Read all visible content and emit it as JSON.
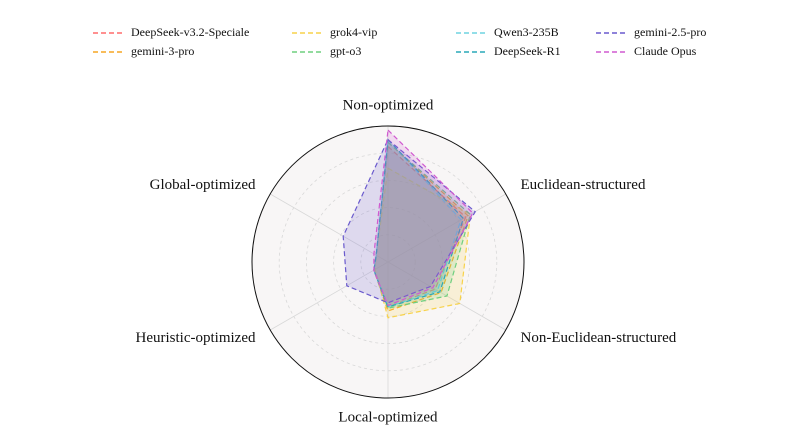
{
  "chart_data": {
    "type": "radar",
    "categories": [
      "Non-optimized",
      "Euclidean-structured",
      "Non-Euclidean-structured",
      "Local-optimized",
      "Heuristic-optimized",
      "Global-optimized"
    ],
    "rlim": [
      0,
      1
    ],
    "rticks": [
      0.2,
      0.4,
      0.6,
      0.8
    ],
    "grid": true,
    "legend": "top",
    "series": [
      {
        "name": "DeepSeek-v3.2-Speciale",
        "color": "#ff6b6b",
        "values": [
          0.85,
          0.66,
          0.4,
          0.33,
          0.12,
          0.1
        ]
      },
      {
        "name": "gemini-3-pro",
        "color": "#f5a623",
        "values": [
          0.88,
          0.68,
          0.45,
          0.36,
          0.12,
          0.1
        ]
      },
      {
        "name": "grok4-vip",
        "color": "#f7d24a",
        "values": [
          0.69,
          0.7,
          0.61,
          0.41,
          0.11,
          0.1
        ]
      },
      {
        "name": "gpt-o3",
        "color": "#6fcf7f",
        "values": [
          0.88,
          0.7,
          0.5,
          0.34,
          0.12,
          0.1
        ]
      },
      {
        "name": "Qwen3-235B",
        "color": "#6fd3e0",
        "values": [
          0.9,
          0.62,
          0.42,
          0.33,
          0.12,
          0.1
        ]
      },
      {
        "name": "DeepSeek-R1",
        "color": "#2aa8b8",
        "values": [
          0.9,
          0.64,
          0.44,
          0.33,
          0.12,
          0.1
        ]
      },
      {
        "name": "gemini-2.5-pro",
        "color": "#6a5acd",
        "values": [
          0.9,
          0.74,
          0.36,
          0.3,
          0.35,
          0.38
        ]
      },
      {
        "name": "Claude Opus",
        "color": "#d05ad0",
        "values": [
          0.97,
          0.72,
          0.38,
          0.32,
          0.12,
          0.12
        ]
      }
    ]
  }
}
